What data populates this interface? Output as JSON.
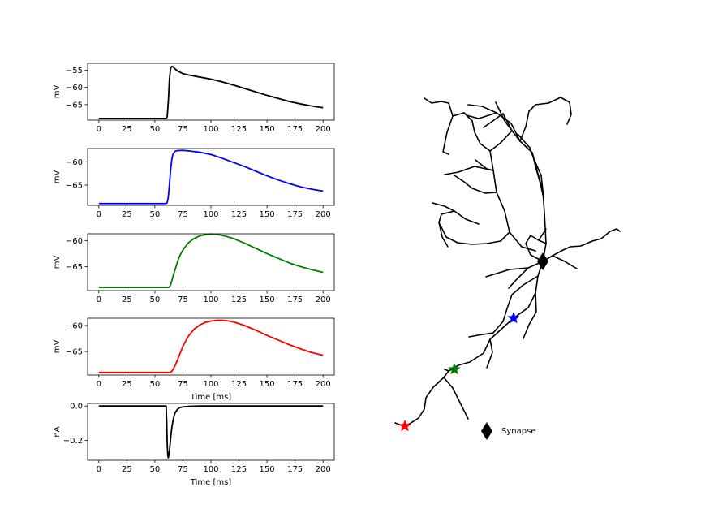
{
  "chart_data": [
    {
      "type": "line",
      "xlabel": "",
      "ylabel": "mV",
      "xlim": [
        -10,
        210
      ],
      "ylim": [
        -69.5,
        -53
      ],
      "xticks": [
        0,
        25,
        50,
        75,
        100,
        125,
        150,
        175,
        200
      ],
      "yticks": [
        -55,
        -60,
        -65
      ],
      "ytick_labels": [
        "−55",
        "−60",
        "−65"
      ],
      "color": "#000000",
      "series": [
        {
          "x": [
            0,
            60,
            61,
            62,
            63,
            64,
            65,
            66,
            68,
            70,
            75,
            80,
            90,
            100,
            110,
            120,
            130,
            140,
            150,
            160,
            170,
            180,
            190,
            200
          ],
          "values": [
            -69,
            -69,
            -68.5,
            -64,
            -57.5,
            -54.5,
            -53.9,
            -54.0,
            -54.6,
            -55.2,
            -56.0,
            -56.4,
            -57.0,
            -57.6,
            -58.4,
            -59.3,
            -60.3,
            -61.3,
            -62.3,
            -63.2,
            -64.1,
            -64.8,
            -65.4,
            -65.9
          ]
        }
      ]
    },
    {
      "type": "line",
      "xlabel": "",
      "ylabel": "mV",
      "xlim": [
        -10,
        210
      ],
      "ylim": [
        -69.4,
        -57.1
      ],
      "xticks": [
        0,
        25,
        50,
        75,
        100,
        125,
        150,
        175,
        200
      ],
      "yticks": [
        -60,
        -65
      ],
      "ytick_labels": [
        "−60",
        "−65"
      ],
      "color": "#0000ff",
      "series": [
        {
          "x": [
            0,
            60,
            61,
            62,
            63,
            64,
            65,
            66,
            68,
            70,
            75,
            80,
            90,
            100,
            110,
            120,
            130,
            140,
            150,
            160,
            170,
            180,
            190,
            200
          ],
          "values": [
            -69,
            -69,
            -68.8,
            -67.5,
            -64.8,
            -61.8,
            -59.6,
            -58.4,
            -57.7,
            -57.55,
            -57.5,
            -57.6,
            -57.9,
            -58.4,
            -59.2,
            -60.1,
            -61.0,
            -62.0,
            -63.0,
            -63.9,
            -64.7,
            -65.4,
            -65.9,
            -66.3
          ]
        }
      ]
    },
    {
      "type": "line",
      "xlabel": "",
      "ylabel": "mV",
      "xlim": [
        -10,
        210
      ],
      "ylim": [
        -69.6,
        -58.7
      ],
      "xticks": [
        0,
        25,
        50,
        75,
        100,
        125,
        150,
        175,
        200
      ],
      "yticks": [
        -60,
        -65
      ],
      "ytick_labels": [
        "−60",
        "−65"
      ],
      "color": "#008000",
      "series": [
        {
          "x": [
            0,
            62,
            63,
            64,
            65,
            66,
            68,
            70,
            72,
            75,
            80,
            85,
            90,
            95,
            100,
            105,
            110,
            120,
            130,
            140,
            150,
            160,
            170,
            180,
            190,
            200
          ],
          "values": [
            -69,
            -69,
            -68.9,
            -68.5,
            -67.8,
            -67.0,
            -65.6,
            -64.2,
            -63.0,
            -61.8,
            -60.4,
            -59.6,
            -59.1,
            -58.85,
            -58.75,
            -58.8,
            -59.0,
            -59.6,
            -60.5,
            -61.5,
            -62.5,
            -63.4,
            -64.3,
            -65.0,
            -65.6,
            -66.1
          ]
        }
      ]
    },
    {
      "type": "line",
      "xlabel": "Time [ms]",
      "ylabel": "mV",
      "xlim": [
        -10,
        210
      ],
      "ylim": [
        -69.5,
        -58.6
      ],
      "xticks": [
        0,
        25,
        50,
        75,
        100,
        125,
        150,
        175,
        200
      ],
      "yticks": [
        -60,
        -65
      ],
      "ytick_labels": [
        "−60",
        "−65"
      ],
      "color": "#ff0000",
      "series": [
        {
          "x": [
            0,
            63,
            64,
            65,
            66,
            68,
            70,
            72,
            75,
            80,
            85,
            90,
            95,
            100,
            105,
            110,
            115,
            120,
            130,
            140,
            150,
            160,
            170,
            180,
            190,
            200
          ],
          "values": [
            -69,
            -69,
            -68.95,
            -68.8,
            -68.5,
            -67.7,
            -66.7,
            -65.6,
            -64.0,
            -62.0,
            -60.7,
            -59.9,
            -59.4,
            -59.15,
            -59.0,
            -59.0,
            -59.1,
            -59.3,
            -60.0,
            -60.9,
            -61.9,
            -62.8,
            -63.7,
            -64.5,
            -65.2,
            -65.7
          ]
        }
      ]
    },
    {
      "type": "line",
      "xlabel": "Time [ms]",
      "ylabel": "nA",
      "xlim": [
        -10,
        210
      ],
      "ylim": [
        -0.315,
        0.015
      ],
      "xticks": [
        0,
        25,
        50,
        75,
        100,
        125,
        150,
        175,
        200
      ],
      "yticks": [
        0.0,
        -0.2
      ],
      "ytick_labels": [
        "0.0",
        "−0.2"
      ],
      "color": "#000000",
      "series": [
        {
          "x": [
            0,
            60,
            60.5,
            61,
            61.5,
            62,
            63,
            64,
            65,
            66,
            67,
            68,
            70,
            72,
            75,
            80,
            90,
            200
          ],
          "values": [
            0,
            0,
            -0.08,
            -0.22,
            -0.29,
            -0.3,
            -0.26,
            -0.19,
            -0.13,
            -0.09,
            -0.06,
            -0.04,
            -0.02,
            -0.01,
            -0.005,
            -0.002,
            0,
            0
          ]
        }
      ]
    }
  ],
  "morphology": {
    "legend_label": "Synapse",
    "synapse_color": "#000000",
    "marker_colors": [
      "#0000ff",
      "#008000",
      "#ff0000"
    ]
  }
}
